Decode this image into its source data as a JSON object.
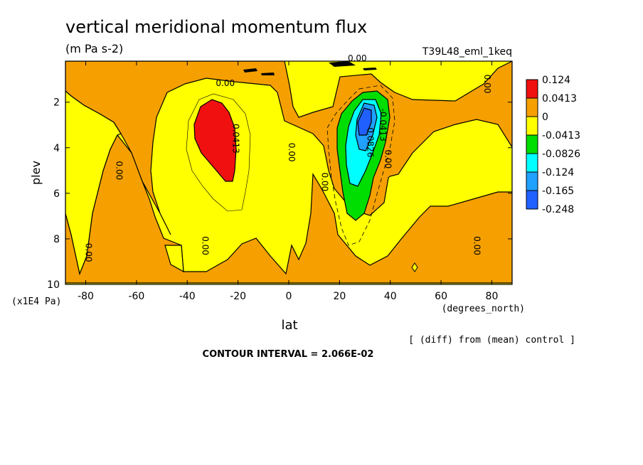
{
  "chart_data": {
    "type": "heatmap",
    "title": "vertical meridional momentum flux",
    "subtitle": "(m Pa s-2)",
    "dataset": "T39L48_eml_1keq",
    "xlabel": "lat",
    "xunits": "(degrees_north)",
    "ylabel": "plev",
    "yunits": "(x1E4 Pa)",
    "note": "[ (diff) from (mean) control ]",
    "contour_interval": "CONTOUR INTERVAL = 2.066E-02",
    "xlim": [
      -88,
      88
    ],
    "ylim": [
      0.2,
      10
    ],
    "y_inverted": true,
    "x_ticks": [
      -80,
      -60,
      -40,
      -20,
      0,
      20,
      40,
      60,
      80
    ],
    "x_tick_labels": [
      "-80",
      "-60",
      "-40",
      "-20",
      "0",
      "20",
      "40",
      "60",
      "80"
    ],
    "y_ticks": [
      2,
      4,
      6,
      8,
      10
    ],
    "y_tick_labels": [
      "2",
      "4",
      "6",
      "8",
      "10"
    ],
    "colorbar_levels": [
      "0.124",
      "0.0413",
      "0",
      "-0.0413",
      "-0.0826",
      "-0.124",
      "-0.165",
      "-0.248"
    ],
    "colorbar_colors": [
      "#f01010",
      "#f5a000",
      "#ffff00",
      "#00dd00",
      "#00ffff",
      "#20a0ff",
      "#2060ff",
      "#000000"
    ],
    "contour_labels": [
      {
        "text": "0.00",
        "lat": 27,
        "plev": 0.2
      },
      {
        "text": "0.00",
        "lat": -25,
        "plev": 1.3
      },
      {
        "text": "0.00",
        "lat": 77,
        "plev": 1.2
      },
      {
        "text": "0.0413",
        "lat": -22,
        "plev": 3.6
      },
      {
        "text": "0.00",
        "lat": 0,
        "plev": 4.2
      },
      {
        "text": "-0.0826",
        "lat": 31,
        "plev": 3.7
      },
      {
        "text": "-0.0413",
        "lat": 36,
        "plev": 3.0
      },
      {
        "text": "0.00",
        "lat": 38,
        "plev": 4.5
      },
      {
        "text": "0.00",
        "lat": -68,
        "plev": 5.0
      },
      {
        "text": "0.00",
        "lat": 13,
        "plev": 5.5
      },
      {
        "text": "0.00",
        "lat": -34,
        "plev": 8.3
      },
      {
        "text": "0.00",
        "lat": -80,
        "plev": 8.6
      },
      {
        "text": "0.00",
        "lat": 73,
        "plev": 8.3
      }
    ]
  }
}
